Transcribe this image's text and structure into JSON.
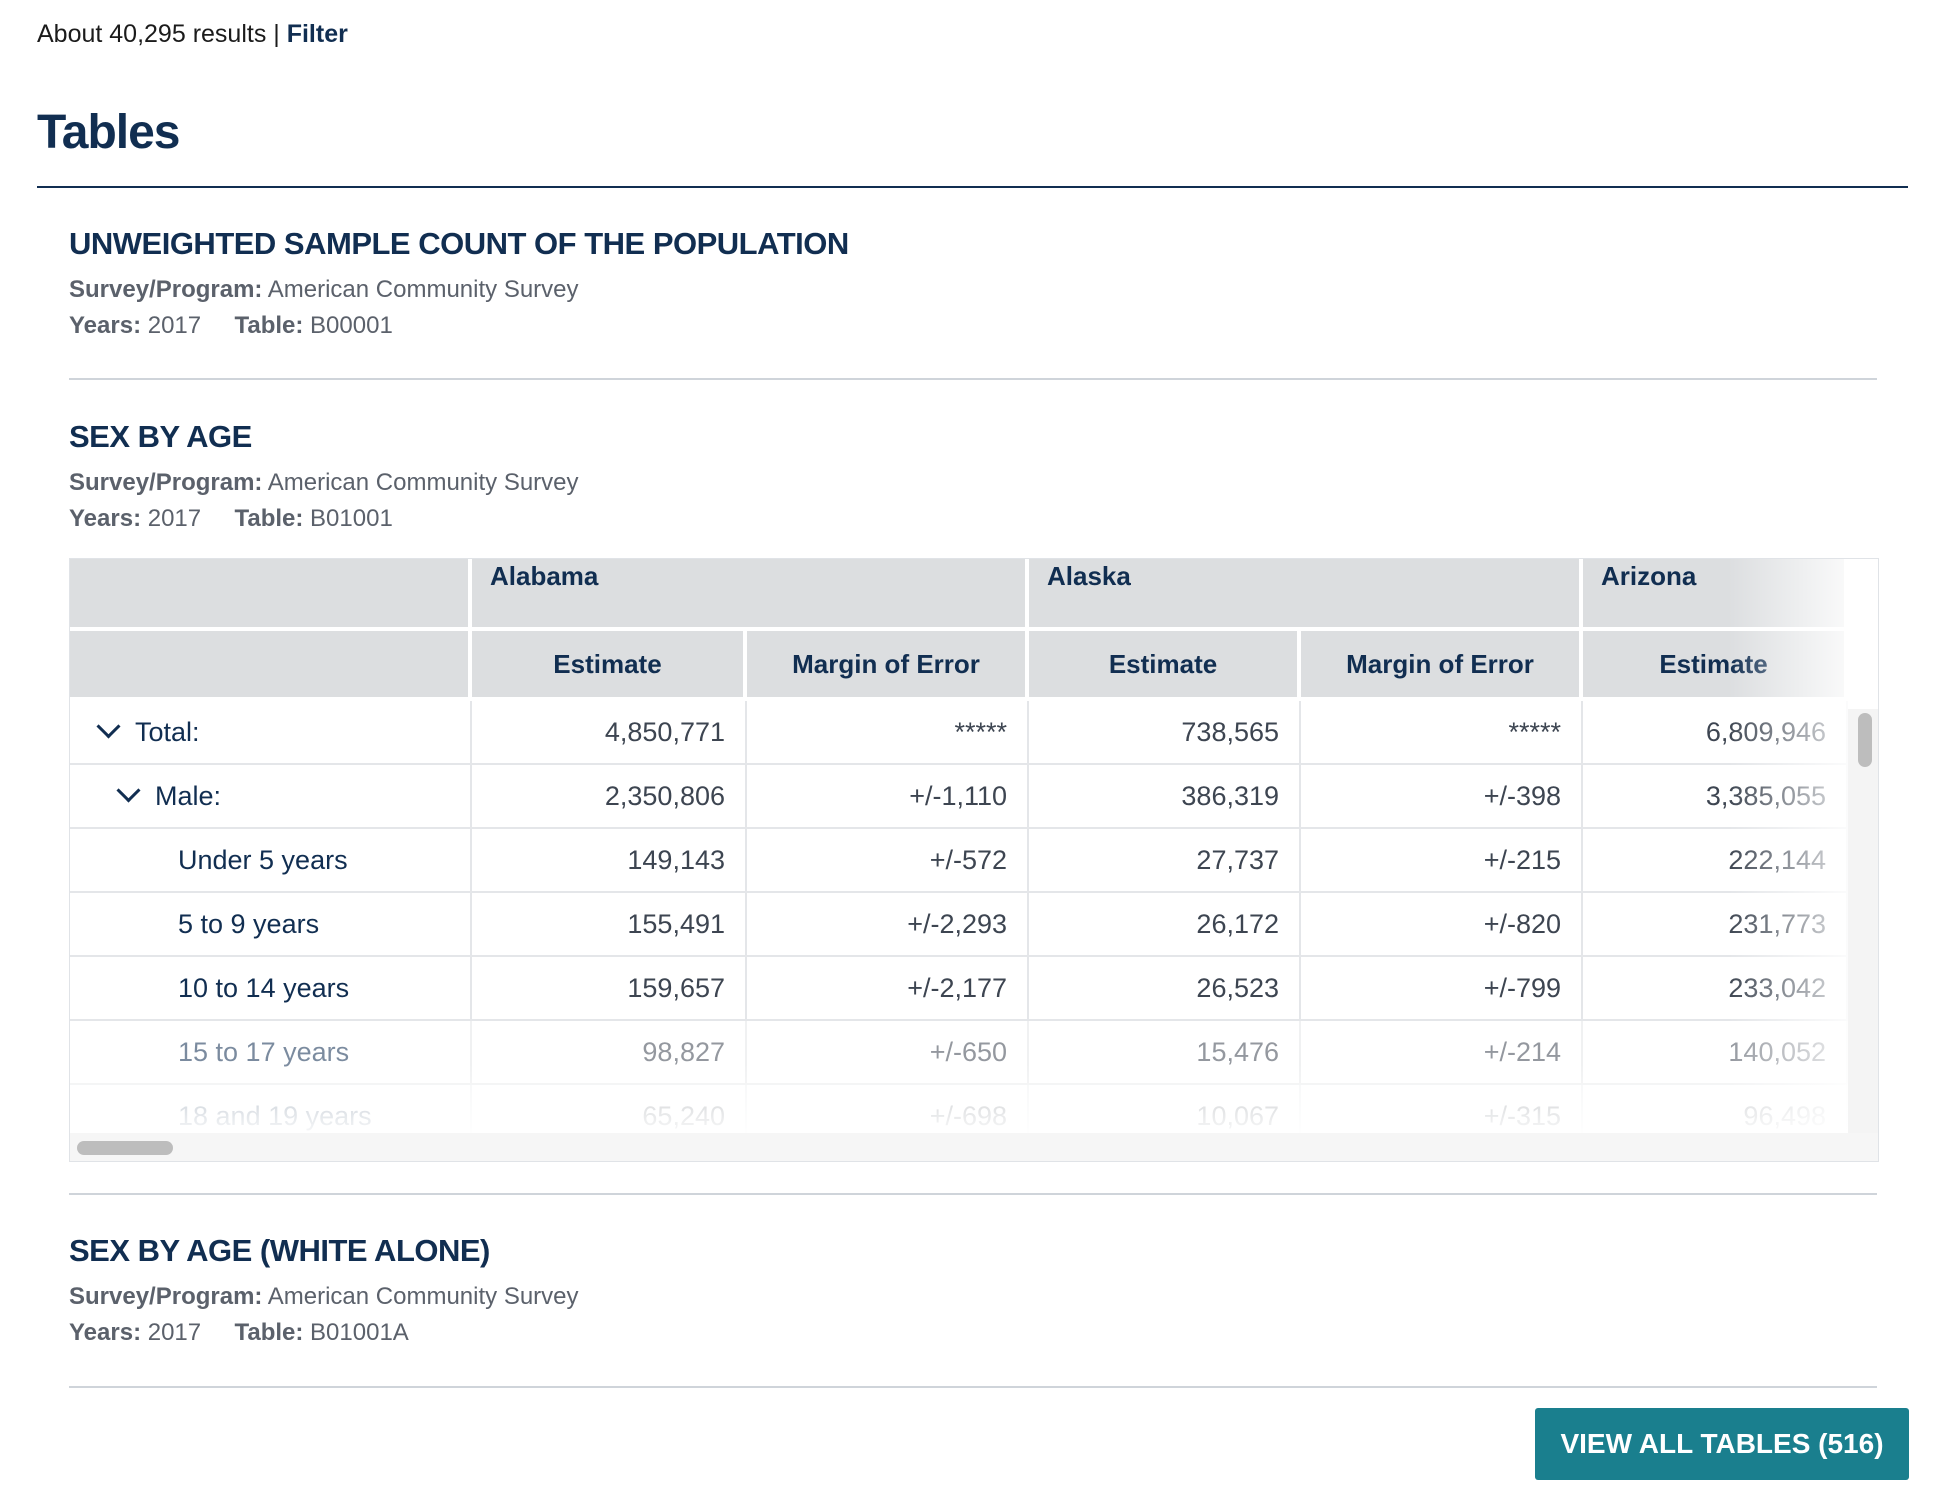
{
  "summary": {
    "results_text": "About 40,295 results |",
    "filter_label": "Filter"
  },
  "section": {
    "title": "Tables"
  },
  "results": [
    {
      "title": "UNWEIGHTED SAMPLE COUNT OF THE POPULATION",
      "survey_label": "Survey/Program:",
      "survey_value": "American Community Survey",
      "years_label": "Years:",
      "years_value": "2017",
      "table_label": "Table:",
      "table_value": "B00001"
    },
    {
      "title": "SEX BY AGE",
      "survey_label": "Survey/Program:",
      "survey_value": "American Community Survey",
      "years_label": "Years:",
      "years_value": "2017",
      "table_label": "Table:",
      "table_value": "B01001"
    },
    {
      "title": "SEX BY AGE (WHITE ALONE)",
      "survey_label": "Survey/Program:",
      "survey_value": "American Community Survey",
      "years_label": "Years:",
      "years_value": "2017",
      "table_label": "Table:",
      "table_value": "B01001A"
    }
  ],
  "preview_table": {
    "states": [
      "Alabama",
      "Alaska",
      "Arizona"
    ],
    "subheaders": [
      "Estimate",
      "Margin of Error",
      "Estimate",
      "Margin of Error",
      "Estimate"
    ],
    "rows": [
      {
        "label": "Total:",
        "values": [
          "4,850,771",
          "*****",
          "738,565",
          "*****",
          "6,809,946"
        ]
      },
      {
        "label": "Male:",
        "values": [
          "2,350,806",
          "+/-1,110",
          "386,319",
          "+/-398",
          "3,385,055"
        ]
      },
      {
        "label": "Under 5 years",
        "values": [
          "149,143",
          "+/-572",
          "27,737",
          "+/-215",
          "222,144"
        ]
      },
      {
        "label": "5 to 9 years",
        "values": [
          "155,491",
          "+/-2,293",
          "26,172",
          "+/-820",
          "231,773"
        ]
      },
      {
        "label": "10 to 14 years",
        "values": [
          "159,657",
          "+/-2,177",
          "26,523",
          "+/-799",
          "233,042"
        ]
      },
      {
        "label": "15 to 17 years",
        "values": [
          "98,827",
          "+/-650",
          "15,476",
          "+/-214",
          "140,052"
        ]
      },
      {
        "label": "18 and 19 years",
        "values": [
          "65,240",
          "+/-698",
          "10,067",
          "+/-315",
          "96,498"
        ]
      }
    ]
  },
  "view_all": {
    "label": "VIEW ALL TABLES (516)"
  },
  "colors": {
    "navy": "#112e51",
    "teal_button": "#1a7f8e",
    "header_gray": "#dcdee0"
  },
  "icons": {
    "expand": "chevron-down-icon"
  }
}
